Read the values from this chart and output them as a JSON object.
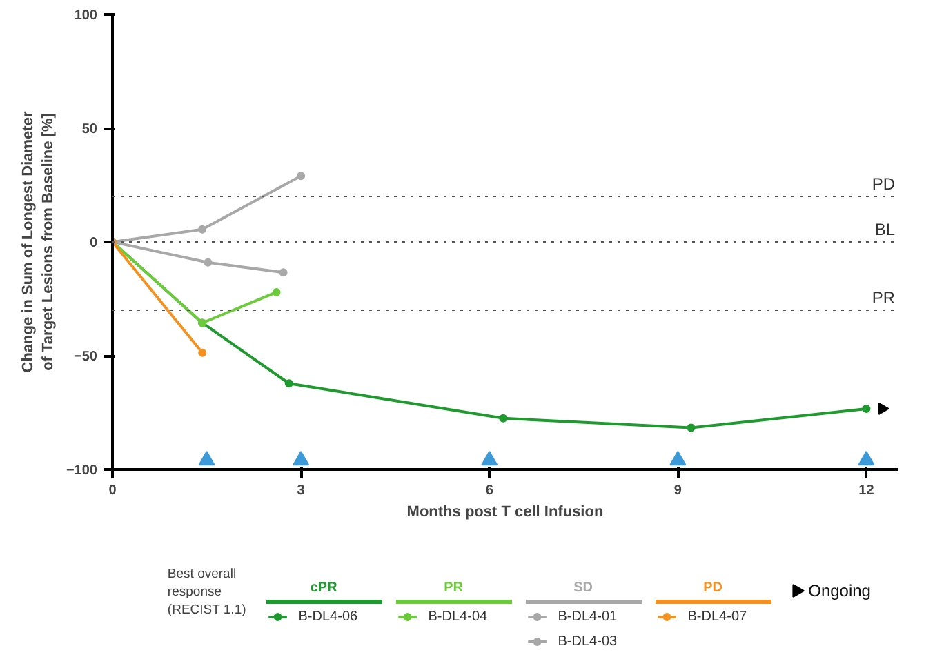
{
  "chart_data": {
    "type": "line",
    "xlabel": "Months post T cell Infusion",
    "ylabel": "Change in Sum of Longest Diameter\nof Target Lesions from Baseline [%]",
    "legend_title": "Best overall\nresponse\n(RECIST 1.1)",
    "xlim": [
      0,
      12.5
    ],
    "ylim": [
      -100,
      100
    ],
    "xticks": [
      0,
      3,
      6,
      9,
      12
    ],
    "yticks": [
      -100,
      -50,
      0,
      50,
      100
    ],
    "grid": false,
    "legend": "bottom",
    "marker": "circle",
    "line_style": "solid",
    "ref_lines": [
      {
        "axis": "y",
        "value": 20,
        "label": "PD",
        "color": "#555555",
        "line_style": "dotted"
      },
      {
        "axis": "y",
        "value": 0,
        "label": "BL",
        "color": "#555555",
        "line_style": "dotted"
      },
      {
        "axis": "y",
        "value": -30,
        "label": "PR",
        "color": "#555555",
        "line_style": "dotted"
      }
    ],
    "annotations": [
      "cPR",
      "PR",
      "SD",
      "PD"
    ],
    "series": [
      {
        "name": "B-DL4-06",
        "color": "#1e9a2e",
        "x": [
          0,
          1.43,
          2.81,
          6.22,
          9.21,
          12
        ],
        "values": [
          0,
          -35.6,
          -62.2,
          -77.5,
          -81.7,
          -73.3
        ]
      },
      {
        "name": "B-DL4-04",
        "color": "#6ccb3a",
        "x": [
          0,
          1.43,
          2.61
        ],
        "values": [
          0,
          -35.6,
          -22.1
        ]
      },
      {
        "name": "B-DL4-01",
        "color": "#a8a8a8",
        "x": [
          0,
          1.43,
          3.0
        ],
        "values": [
          0,
          5.5,
          29
        ]
      },
      {
        "name": "B-DL4-03",
        "color": "#a8a8a8",
        "x": [
          0,
          1.52,
          2.72
        ],
        "values": [
          0,
          -9,
          -13.4
        ]
      },
      {
        "name": "B-DL4-07",
        "color": "#f39221",
        "x": [
          0,
          1.43
        ],
        "values": [
          0,
          -48.7
        ]
      },
      {
        "type": "scatter",
        "marker": "triangle",
        "name": "Ongoing",
        "color": "#000000",
        "x": [
          12.25
        ],
        "values": [
          -73.3
        ]
      },
      {
        "type": "scatter",
        "marker": "triangle",
        "color": "#3c9ad8",
        "x": [
          1.5,
          3,
          6,
          9,
          12
        ],
        "values": [
          -96,
          -96,
          -96,
          -96,
          -96
        ]
      }
    ]
  }
}
